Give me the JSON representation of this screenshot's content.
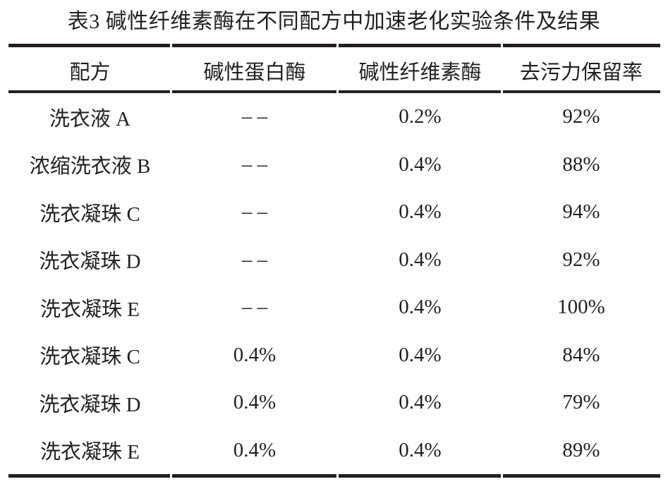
{
  "page": {
    "background": "#ffffff",
    "text_color": "#231f20",
    "rule_color": "#231f20"
  },
  "table": {
    "title": "表3 碱性纤维素酶在不同配方中加速老化实验条件及结果",
    "columns": [
      "配方",
      "碱性蛋白酶",
      "碱性纤维素酶",
      "去污力保留率"
    ],
    "empty_marker": "– –",
    "rows": [
      {
        "formula": "洗衣液 A",
        "protease": "– –",
        "cellulase": "0.2%",
        "retention": "92%"
      },
      {
        "formula": "浓缩洗衣液 B",
        "protease": "– –",
        "cellulase": "0.4%",
        "retention": "88%"
      },
      {
        "formula": "洗衣凝珠 C",
        "protease": "– –",
        "cellulase": "0.4%",
        "retention": "94%"
      },
      {
        "formula": "洗衣凝珠 D",
        "protease": "– –",
        "cellulase": "0.4%",
        "retention": "92%"
      },
      {
        "formula": "洗衣凝珠 E",
        "protease": "– –",
        "cellulase": "0.4%",
        "retention": "100%"
      },
      {
        "formula": "洗衣凝珠 C",
        "protease": "0.4%",
        "cellulase": "0.4%",
        "retention": "84%"
      },
      {
        "formula": "洗衣凝珠 D",
        "protease": "0.4%",
        "cellulase": "0.4%",
        "retention": "79%"
      },
      {
        "formula": "洗衣凝珠 E",
        "protease": "0.4%",
        "cellulase": "0.4%",
        "retention": "89%"
      }
    ]
  }
}
